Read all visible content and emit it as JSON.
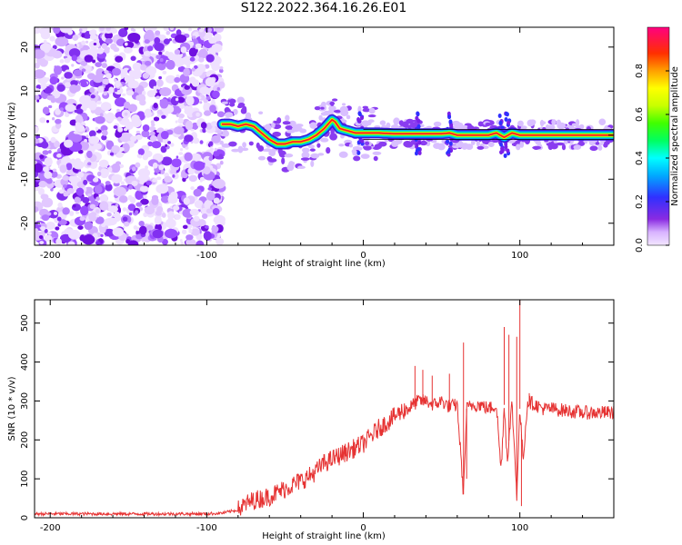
{
  "title": "S122.2022.364.16.26.E01",
  "chart_data": [
    {
      "type": "heatmap",
      "xlabel": "Height of straight line (km)",
      "ylabel": "Frequency (Hz)",
      "xlim": [
        -210,
        160
      ],
      "ylim": [
        -25,
        24.5
      ],
      "xticks": [
        -200,
        -100,
        0,
        100
      ],
      "yticks": [
        -20,
        -10,
        0,
        10,
        20
      ],
      "colorbar": {
        "label": "Normalized spectral amplitude",
        "range": [
          0,
          1
        ],
        "ticks": [
          0.0,
          0.2,
          0.4,
          0.6,
          0.8
        ]
      },
      "ridge": {
        "x": [
          -90,
          -85,
          -80,
          -75,
          -70,
          -65,
          -60,
          -55,
          -50,
          -45,
          -40,
          -35,
          -30,
          -25,
          -20,
          -18,
          -15,
          -10,
          -5,
          0,
          5,
          10,
          20,
          30,
          40,
          50,
          55,
          60,
          70,
          80,
          85,
          90,
          95,
          100,
          110,
          120,
          130,
          140,
          150,
          160
        ],
        "y": [
          2.5,
          2.5,
          2.0,
          2.5,
          2.0,
          0.5,
          -1.0,
          -2.0,
          -2.0,
          -1.5,
          -1.5,
          -1.0,
          0.0,
          1.5,
          3.5,
          3.0,
          1.5,
          1.0,
          0.5,
          0.5,
          0.5,
          0.5,
          0.3,
          0.3,
          0.3,
          0.3,
          0.5,
          0.0,
          0.0,
          0.0,
          0.5,
          -0.5,
          0.5,
          0.0,
          0.0,
          0.0,
          0.0,
          0.0,
          0.0,
          0.0
        ]
      }
    },
    {
      "type": "line",
      "xlabel": "Height of straight line (km)",
      "ylabel": "SNR (10 * v/v)",
      "xlim": [
        -210,
        160
      ],
      "ylim": [
        0,
        560
      ],
      "xticks": [
        -200,
        -100,
        0,
        100
      ],
      "yticks": [
        0,
        100,
        200,
        300,
        400,
        500
      ],
      "color": "#e63333",
      "series": [
        {
          "x": [
            -210,
            -180,
            -150,
            -120,
            -100,
            -90,
            -80,
            -75,
            -70,
            -65,
            -60,
            -55,
            -50,
            -45,
            -40,
            -35,
            -30,
            -25,
            -20,
            -15,
            -10,
            -5,
            0,
            5,
            10,
            15,
            20,
            25,
            30,
            35,
            40,
            45,
            50,
            55,
            60,
            64,
            66,
            70,
            75,
            80,
            85,
            88,
            90,
            92,
            95,
            98,
            100,
            102,
            105,
            110,
            115,
            120,
            130,
            140,
            150,
            160
          ],
          "y": [
            10,
            10,
            10,
            10,
            10,
            12,
            20,
            35,
            45,
            50,
            55,
            65,
            75,
            85,
            95,
            105,
            120,
            140,
            150,
            160,
            170,
            180,
            190,
            210,
            230,
            245,
            260,
            275,
            285,
            300,
            300,
            290,
            300,
            285,
            290,
            60,
            280,
            290,
            290,
            280,
            290,
            120,
            290,
            150,
            295,
            60,
            280,
            150,
            300,
            290,
            280,
            280,
            275,
            270,
            270,
            270
          ]
        }
      ],
      "spikes": [
        {
          "x": 33,
          "y": 390
        },
        {
          "x": 38,
          "y": 380
        },
        {
          "x": 44,
          "y": 365
        },
        {
          "x": 55,
          "y": 370
        },
        {
          "x": 64,
          "y": 450
        },
        {
          "x": 66,
          "y": 100
        },
        {
          "x": 90,
          "y": 490
        },
        {
          "x": 93,
          "y": 470
        },
        {
          "x": 98,
          "y": 465
        },
        {
          "x": 100,
          "y": 560
        },
        {
          "x": 101,
          "y": 30
        },
        {
          "x": 106,
          "y": 320
        }
      ]
    }
  ]
}
